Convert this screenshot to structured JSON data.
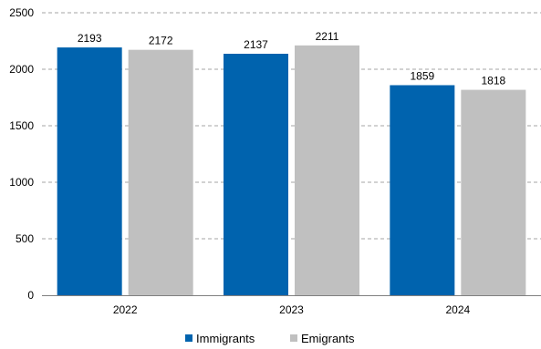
{
  "chart_data": {
    "type": "bar",
    "categories": [
      "2022",
      "2023",
      "2024"
    ],
    "series": [
      {
        "name": "Immigrants",
        "values": [
          2193,
          2137,
          1859
        ],
        "color": "#0063AE"
      },
      {
        "name": "Emigrants",
        "values": [
          2172,
          2211,
          1818
        ],
        "color": "#C0C0C0"
      }
    ],
    "ylim": [
      0,
      2500
    ],
    "yticks": [
      0,
      500,
      1000,
      1500,
      2000,
      2500
    ],
    "grid": "horizontal dashed",
    "legend": "bottom-center",
    "title": "",
    "xlabel": "",
    "ylabel": ""
  }
}
